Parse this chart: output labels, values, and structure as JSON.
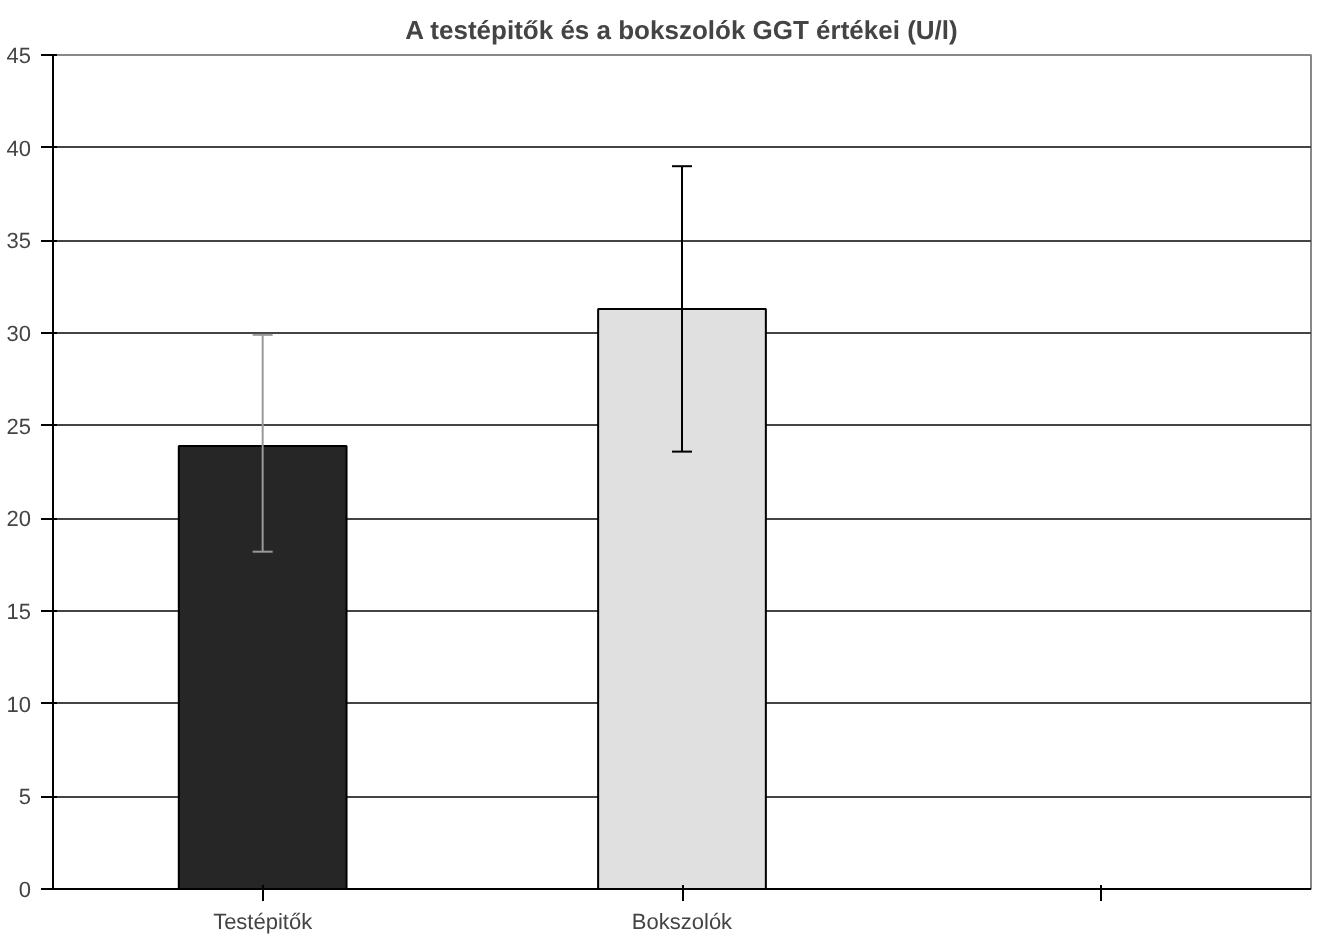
{
  "chart_data": {
    "type": "bar",
    "title": "A testépitők és a bokszolók GGT értékei (U/l)",
    "categories": [
      "Testépitők",
      "Bokszolók",
      null
    ],
    "values": [
      23.9,
      31.3,
      null
    ],
    "colors": [
      "#262626",
      "#e0e0e0",
      "#e0e0e0"
    ],
    "errors": [
      [
        18.2,
        29.9
      ],
      [
        23.6,
        39.0
      ],
      null
    ],
    "ylim": [
      0,
      45
    ],
    "yticks": [
      0,
      5,
      10,
      15,
      20,
      25,
      30,
      35,
      40,
      45
    ],
    "grid": "y"
  }
}
